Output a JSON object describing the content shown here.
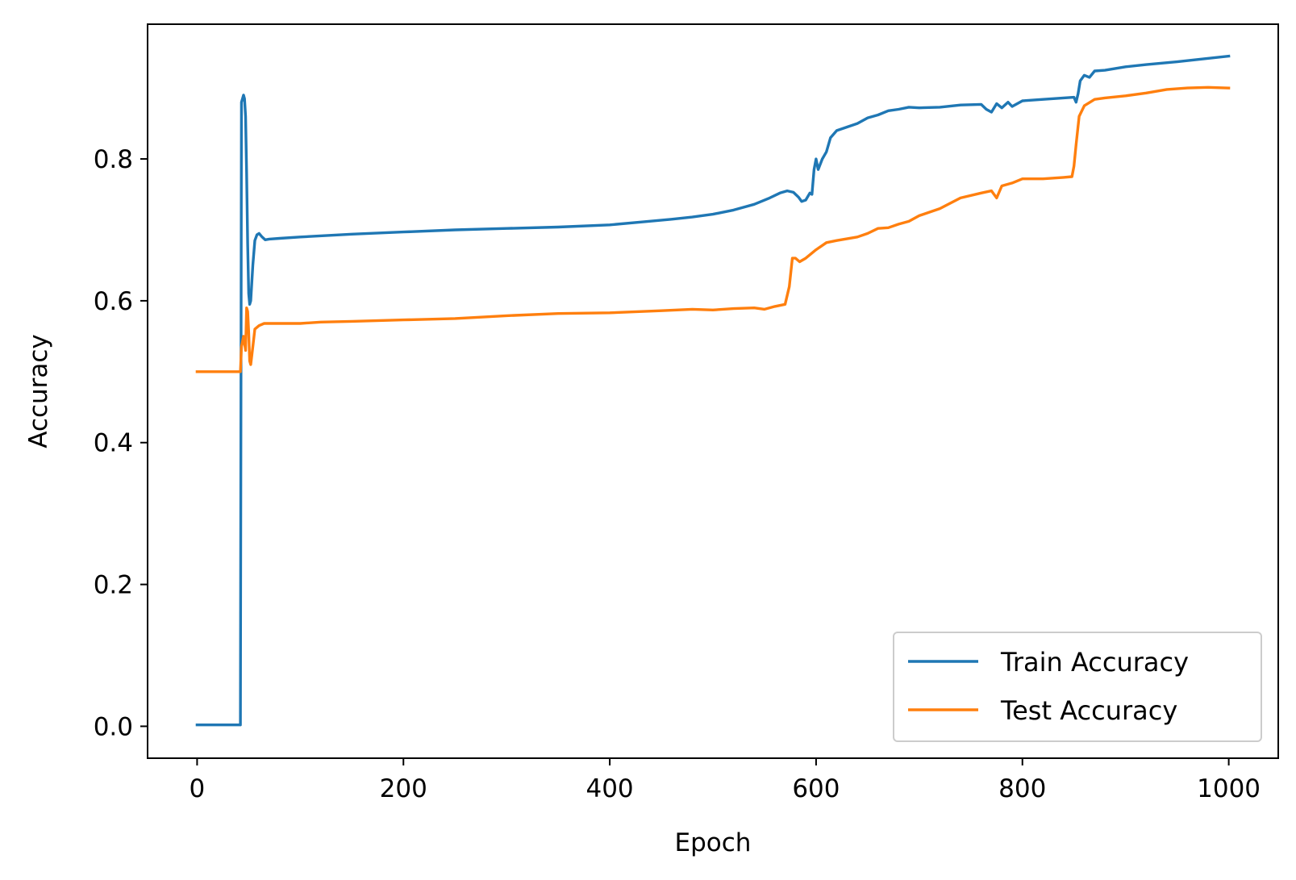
{
  "chart_data": {
    "type": "line",
    "title": "",
    "xlabel": "Epoch",
    "ylabel": "Accuracy",
    "xlim": [
      -48,
      1048
    ],
    "ylim": [
      -0.045,
      0.99
    ],
    "xticks": [
      0,
      200,
      400,
      600,
      800,
      1000
    ],
    "xtick_labels": [
      "0",
      "200",
      "400",
      "600",
      "800",
      "1000"
    ],
    "yticks": [
      0.0,
      0.2,
      0.4,
      0.6,
      0.8
    ],
    "ytick_labels": [
      "0.0",
      "0.2",
      "0.4",
      "0.6",
      "0.8"
    ],
    "grid": false,
    "legend": {
      "placement": "lower-right"
    },
    "series": [
      {
        "name": "Train Accuracy",
        "color": "#1f77b4",
        "points": [
          [
            0,
            0.002
          ],
          [
            20,
            0.002
          ],
          [
            42,
            0.002
          ],
          [
            43,
            0.88
          ],
          [
            44,
            0.885
          ],
          [
            45,
            0.89
          ],
          [
            46,
            0.885
          ],
          [
            47,
            0.86
          ],
          [
            48,
            0.78
          ],
          [
            49,
            0.68
          ],
          [
            50,
            0.61
          ],
          [
            51,
            0.595
          ],
          [
            52,
            0.6
          ],
          [
            54,
            0.65
          ],
          [
            56,
            0.685
          ],
          [
            58,
            0.693
          ],
          [
            60,
            0.695
          ],
          [
            63,
            0.69
          ],
          [
            66,
            0.686
          ],
          [
            70,
            0.687
          ],
          [
            80,
            0.688
          ],
          [
            100,
            0.69
          ],
          [
            150,
            0.694
          ],
          [
            200,
            0.697
          ],
          [
            250,
            0.7
          ],
          [
            300,
            0.702
          ],
          [
            350,
            0.704
          ],
          [
            400,
            0.707
          ],
          [
            430,
            0.711
          ],
          [
            460,
            0.715
          ],
          [
            480,
            0.718
          ],
          [
            500,
            0.722
          ],
          [
            520,
            0.728
          ],
          [
            540,
            0.736
          ],
          [
            555,
            0.745
          ],
          [
            565,
            0.752
          ],
          [
            572,
            0.755
          ],
          [
            578,
            0.753
          ],
          [
            583,
            0.746
          ],
          [
            586,
            0.74
          ],
          [
            590,
            0.742
          ],
          [
            594,
            0.752
          ],
          [
            596,
            0.75
          ],
          [
            598,
            0.785
          ],
          [
            600,
            0.8
          ],
          [
            602,
            0.785
          ],
          [
            606,
            0.8
          ],
          [
            610,
            0.81
          ],
          [
            614,
            0.83
          ],
          [
            620,
            0.84
          ],
          [
            630,
            0.845
          ],
          [
            640,
            0.85
          ],
          [
            650,
            0.858
          ],
          [
            660,
            0.862
          ],
          [
            670,
            0.868
          ],
          [
            680,
            0.87
          ],
          [
            690,
            0.873
          ],
          [
            700,
            0.872
          ],
          [
            720,
            0.873
          ],
          [
            740,
            0.876
          ],
          [
            760,
            0.877
          ],
          [
            765,
            0.87
          ],
          [
            770,
            0.866
          ],
          [
            775,
            0.878
          ],
          [
            780,
            0.872
          ],
          [
            786,
            0.88
          ],
          [
            790,
            0.874
          ],
          [
            800,
            0.882
          ],
          [
            820,
            0.884
          ],
          [
            840,
            0.886
          ],
          [
            850,
            0.887
          ],
          [
            852,
            0.88
          ],
          [
            854,
            0.892
          ],
          [
            856,
            0.91
          ],
          [
            860,
            0.918
          ],
          [
            865,
            0.915
          ],
          [
            870,
            0.924
          ],
          [
            880,
            0.925
          ],
          [
            900,
            0.93
          ],
          [
            920,
            0.933
          ],
          [
            950,
            0.937
          ],
          [
            975,
            0.941
          ],
          [
            1000,
            0.945
          ]
        ]
      },
      {
        "name": "Test Accuracy",
        "color": "#ff7f0e",
        "points": [
          [
            0,
            0.5
          ],
          [
            20,
            0.5
          ],
          [
            42,
            0.5
          ],
          [
            43,
            0.535
          ],
          [
            45,
            0.55
          ],
          [
            47,
            0.53
          ],
          [
            48,
            0.59
          ],
          [
            49,
            0.585
          ],
          [
            50,
            0.555
          ],
          [
            51,
            0.515
          ],
          [
            52,
            0.51
          ],
          [
            54,
            0.535
          ],
          [
            56,
            0.56
          ],
          [
            60,
            0.565
          ],
          [
            65,
            0.568
          ],
          [
            80,
            0.568
          ],
          [
            100,
            0.568
          ],
          [
            120,
            0.57
          ],
          [
            150,
            0.571
          ],
          [
            200,
            0.573
          ],
          [
            250,
            0.575
          ],
          [
            300,
            0.579
          ],
          [
            350,
            0.582
          ],
          [
            400,
            0.583
          ],
          [
            450,
            0.586
          ],
          [
            480,
            0.588
          ],
          [
            500,
            0.587
          ],
          [
            520,
            0.589
          ],
          [
            540,
            0.59
          ],
          [
            550,
            0.588
          ],
          [
            560,
            0.592
          ],
          [
            570,
            0.595
          ],
          [
            574,
            0.62
          ],
          [
            577,
            0.66
          ],
          [
            580,
            0.66
          ],
          [
            584,
            0.655
          ],
          [
            590,
            0.66
          ],
          [
            600,
            0.672
          ],
          [
            610,
            0.682
          ],
          [
            620,
            0.685
          ],
          [
            640,
            0.69
          ],
          [
            650,
            0.695
          ],
          [
            660,
            0.702
          ],
          [
            670,
            0.703
          ],
          [
            680,
            0.708
          ],
          [
            690,
            0.712
          ],
          [
            700,
            0.72
          ],
          [
            720,
            0.73
          ],
          [
            740,
            0.745
          ],
          [
            760,
            0.752
          ],
          [
            770,
            0.755
          ],
          [
            775,
            0.745
          ],
          [
            780,
            0.762
          ],
          [
            790,
            0.766
          ],
          [
            800,
            0.772
          ],
          [
            820,
            0.772
          ],
          [
            840,
            0.774
          ],
          [
            848,
            0.775
          ],
          [
            850,
            0.79
          ],
          [
            852,
            0.82
          ],
          [
            855,
            0.86
          ],
          [
            860,
            0.875
          ],
          [
            870,
            0.884
          ],
          [
            880,
            0.886
          ],
          [
            900,
            0.889
          ],
          [
            920,
            0.893
          ],
          [
            940,
            0.898
          ],
          [
            960,
            0.9
          ],
          [
            980,
            0.901
          ],
          [
            1000,
            0.9
          ]
        ]
      }
    ]
  }
}
